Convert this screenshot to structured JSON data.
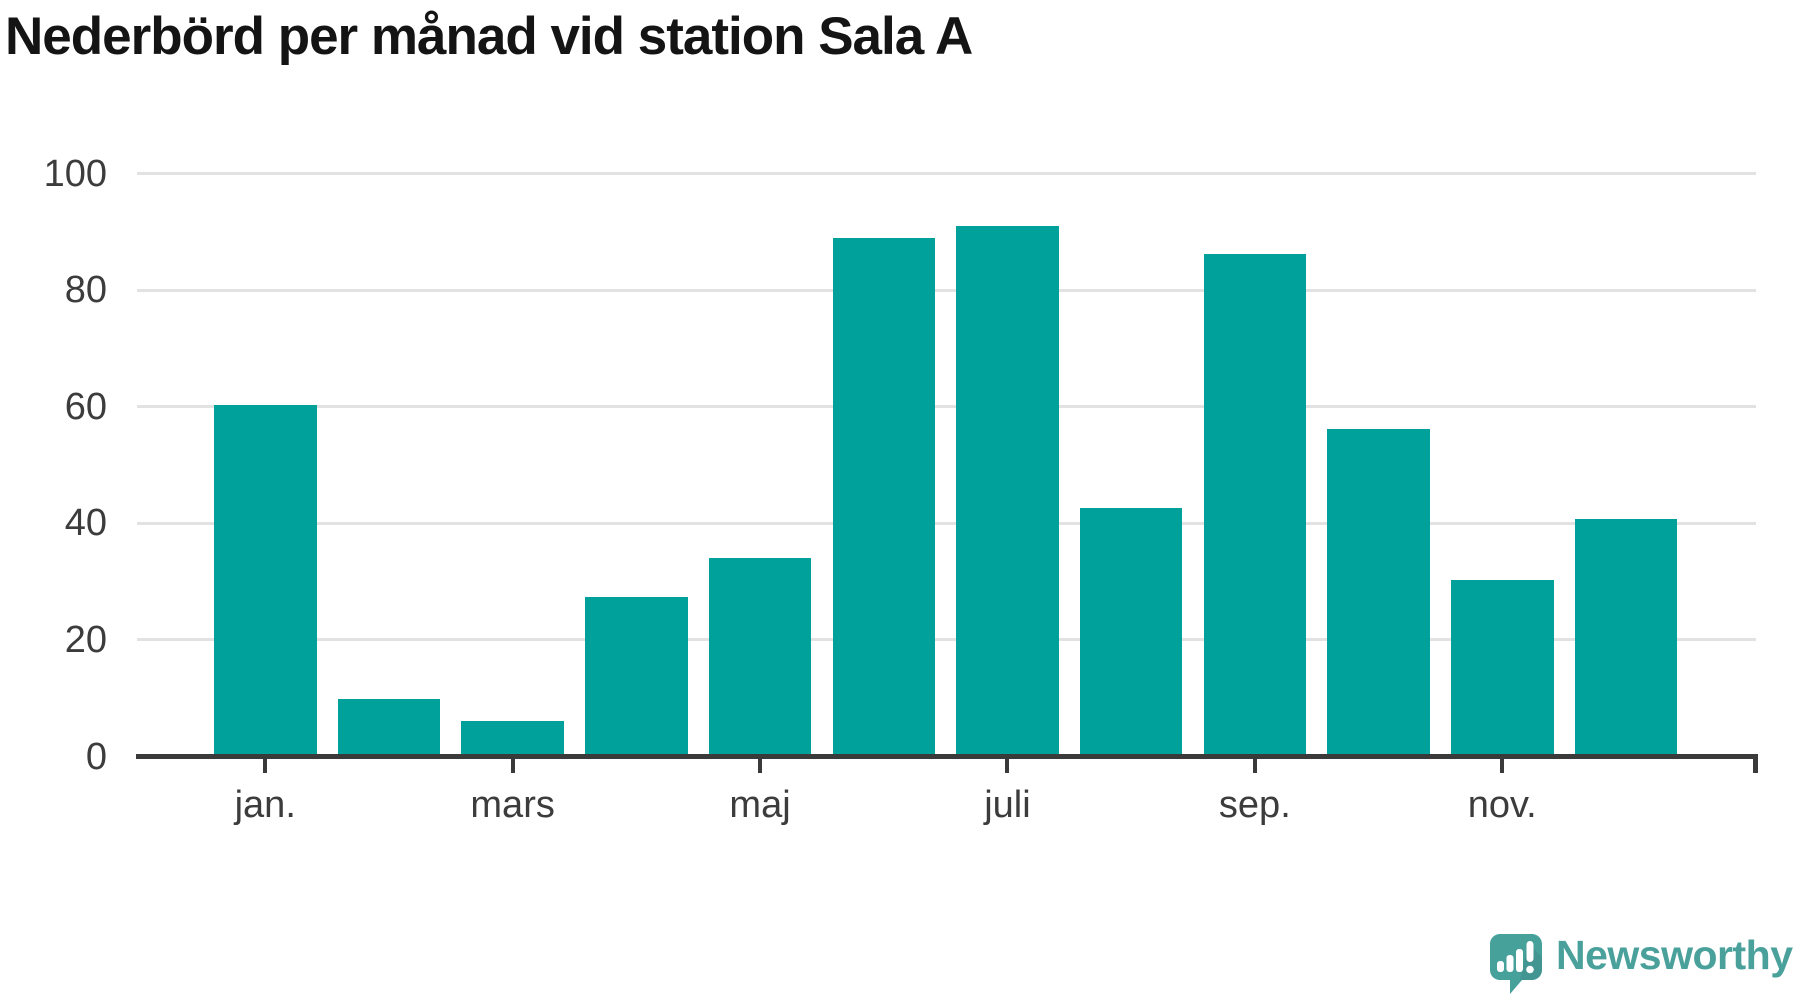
{
  "header": {
    "title": "Nederbörd per månad vid station Sala A"
  },
  "branding": {
    "logo_text": "Newsworthy",
    "logo_color": "#4aa19b",
    "logo_icon": "newsworthy-speech-bubble-bar-chart-icon"
  },
  "chart_data": {
    "type": "bar",
    "title": "Nederbörd per månad vid station Sala A",
    "n_bars": 12,
    "values": [
      60.3,
      9.9,
      6.1,
      27.4,
      34.1,
      88.9,
      91.0,
      42.6,
      86.2,
      56.1,
      30.2,
      40.8
    ],
    "x_tick_labels": [
      "jan.",
      "mars",
      "maj",
      "juli",
      "sep.",
      "nov."
    ],
    "x_tick_bar_indices": [
      0,
      2,
      4,
      6,
      8,
      10
    ],
    "y_ticks": [
      0,
      20,
      40,
      60,
      80,
      100
    ],
    "ylim": [
      0,
      100
    ],
    "xlabel": "",
    "ylabel": "",
    "legend": "none",
    "grid": "horizontal",
    "bar_color": "#00a19a",
    "gridline_color": "#e2e2e2",
    "axis_color": "#3a3a3a",
    "tick_label_color": "#3c3c3c"
  }
}
